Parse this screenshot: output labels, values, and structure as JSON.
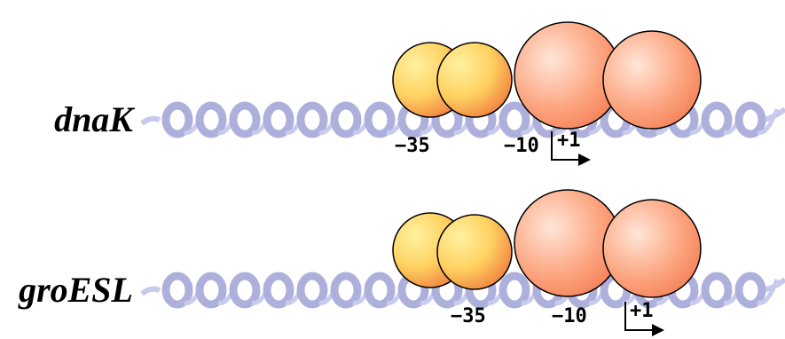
{
  "rows": [
    {
      "gene": "dnaK",
      "minus35": "−35",
      "minus10": "−10",
      "start": "+1"
    },
    {
      "gene": "groESL",
      "minus35": "−35",
      "minus10": "−10",
      "start": "+1"
    }
  ]
}
